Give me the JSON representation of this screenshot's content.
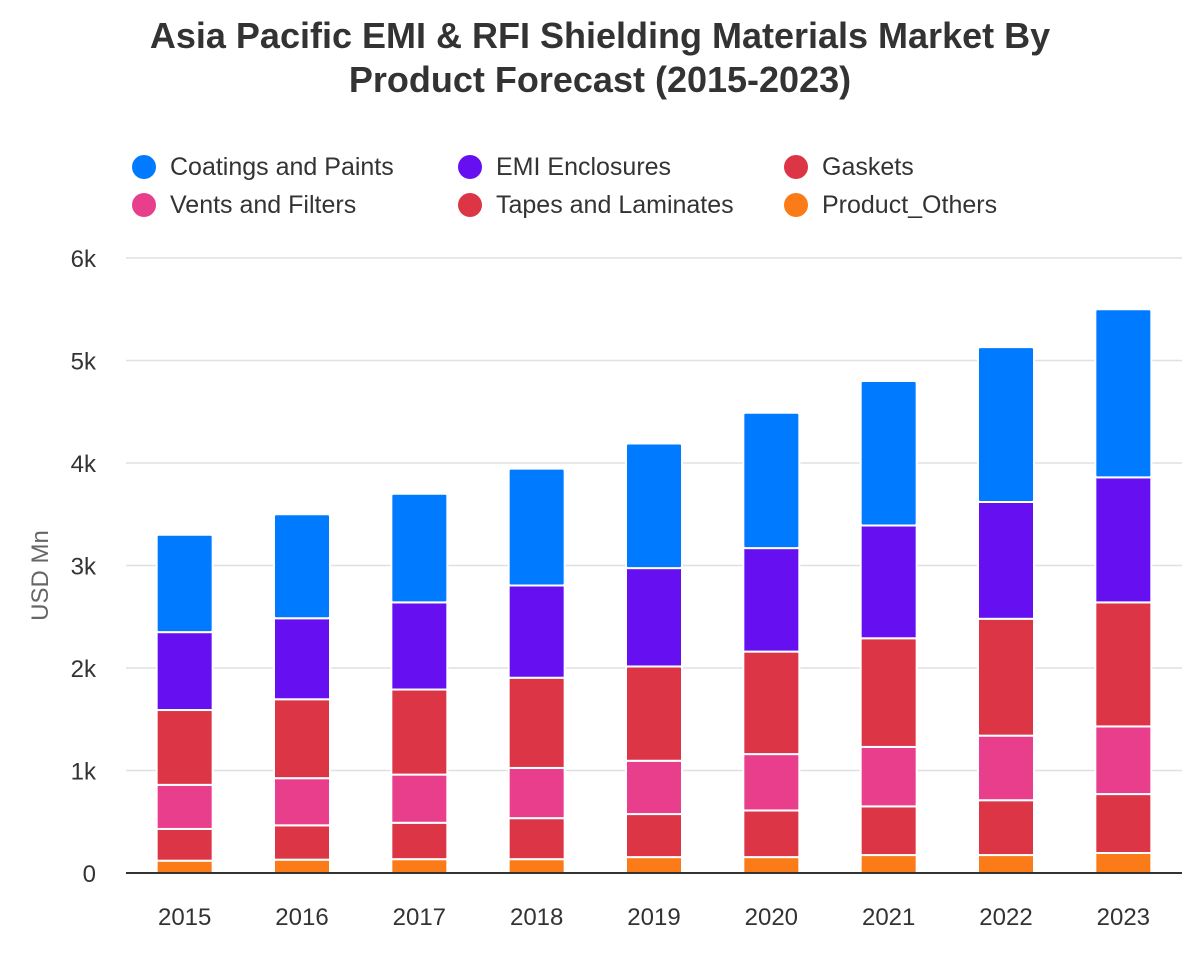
{
  "chart_data": {
    "type": "bar",
    "stacked": true,
    "title": "Asia Pacific EMI & RFI Shielding Materials Market By Product Forecast (2015-2023)",
    "title_lines": [
      "Asia Pacific EMI & RFI Shielding Materials Market By",
      "Product Forecast (2015-2023)"
    ],
    "xlabel": "",
    "ylabel": "USD Mn",
    "ylim": [
      0,
      6000
    ],
    "yticks": [
      0,
      1000,
      2000,
      3000,
      4000,
      5000,
      6000
    ],
    "ytick_labels": [
      "0",
      "1k",
      "2k",
      "3k",
      "4k",
      "5k",
      "6k"
    ],
    "grid": true,
    "legend_position": "top",
    "categories": [
      "2015",
      "2016",
      "2017",
      "2018",
      "2019",
      "2020",
      "2021",
      "2022",
      "2023"
    ],
    "series": [
      {
        "name": "Product_Others",
        "color": "#fa7b17",
        "values": [
          120,
          130,
          135,
          135,
          155,
          155,
          175,
          175,
          195
        ]
      },
      {
        "name": "Tapes and Laminates",
        "color": "#dc3545",
        "values": [
          310,
          335,
          355,
          400,
          420,
          455,
          475,
          535,
          575
        ]
      },
      {
        "name": "Vents and Filters",
        "color": "#e83e8c",
        "values": [
          430,
          460,
          470,
          490,
          520,
          550,
          580,
          630,
          660
        ]
      },
      {
        "name": "Gaskets",
        "color": "#dc3545",
        "values": [
          730,
          770,
          830,
          880,
          920,
          1000,
          1060,
          1140,
          1210
        ]
      },
      {
        "name": "EMI Enclosures",
        "color": "#6610f2",
        "values": [
          760,
          790,
          850,
          900,
          960,
          1010,
          1100,
          1140,
          1220
        ]
      },
      {
        "name": "Coatings and Paints",
        "color": "#007bff",
        "values": [
          950,
          1015,
          1060,
          1140,
          1215,
          1320,
          1410,
          1510,
          1640
        ]
      }
    ]
  },
  "legend": [
    {
      "label": "Coatings and Paints",
      "color": "#007bff"
    },
    {
      "label": "EMI Enclosures",
      "color": "#6610f2"
    },
    {
      "label": "Gaskets",
      "color": "#dc3545"
    },
    {
      "label": "Vents and Filters",
      "color": "#e83e8c"
    },
    {
      "label": "Tapes and Laminates",
      "color": "#dc3545"
    },
    {
      "label": "Product_Others",
      "color": "#fa7b17"
    }
  ]
}
